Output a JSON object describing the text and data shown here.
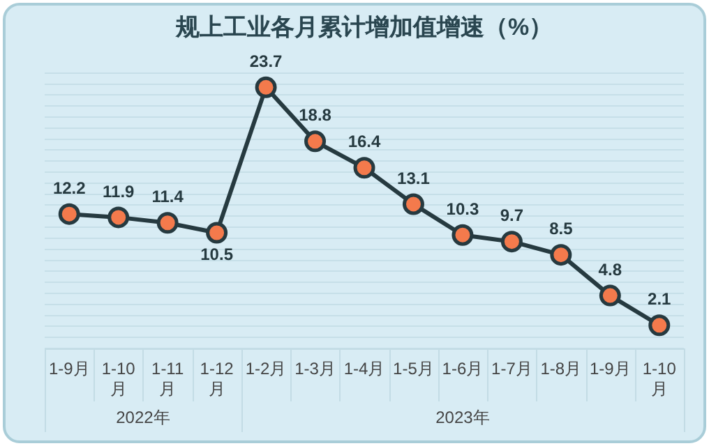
{
  "chart_data": {
    "type": "line",
    "title": "规上工业各月累计增加值增速（%）",
    "categories": [
      "1-9月",
      "1-10月",
      "1-11月",
      "1-12月",
      "1-2月",
      "1-3月",
      "1-4月",
      "1-5月",
      "1-6月",
      "1-7月",
      "1-8月",
      "1-9月",
      "1-10月"
    ],
    "series": [
      {
        "color": "#263a40",
        "values": [
          12.2,
          11.9,
          11.4,
          10.5,
          23.7,
          18.8,
          16.4,
          13.1,
          10.3,
          9.7,
          8.5,
          4.8,
          2.1
        ]
      }
    ],
    "ylim": [
      0,
      25
    ],
    "yticks": [
      {
        "value": 0,
        "label": null
      },
      {
        "value": 1,
        "label": null
      },
      {
        "value": 2,
        "label": null
      },
      {
        "value": 3,
        "label": null
      },
      {
        "value": 4,
        "label": null
      },
      {
        "value": 5,
        "label": null
      },
      {
        "value": 6,
        "label": null
      },
      {
        "value": 7,
        "label": null
      },
      {
        "value": 8,
        "label": null
      },
      {
        "value": 9,
        "label": null
      },
      {
        "value": 10,
        "label": null
      },
      {
        "value": 11,
        "label": null
      },
      {
        "value": 12,
        "label": null
      },
      {
        "value": 13,
        "label": null
      },
      {
        "value": 14,
        "label": null
      },
      {
        "value": 15,
        "label": null
      },
      {
        "value": 16,
        "label": null
      },
      {
        "value": 17,
        "label": null
      },
      {
        "value": 18,
        "label": null
      },
      {
        "value": 19,
        "label": null
      },
      {
        "value": 20,
        "label": null
      },
      {
        "value": 21,
        "label": null
      },
      {
        "value": 22,
        "label": null
      },
      {
        "value": 23,
        "label": null
      },
      {
        "value": 24,
        "label": null
      },
      {
        "value": 25,
        "label": null
      }
    ],
    "tick_labels": "x",
    "grid": "y",
    "marker": "circle",
    "data_labels": true,
    "legend": false,
    "annotations": [
      "2022年",
      "2023年"
    ]
  }
}
